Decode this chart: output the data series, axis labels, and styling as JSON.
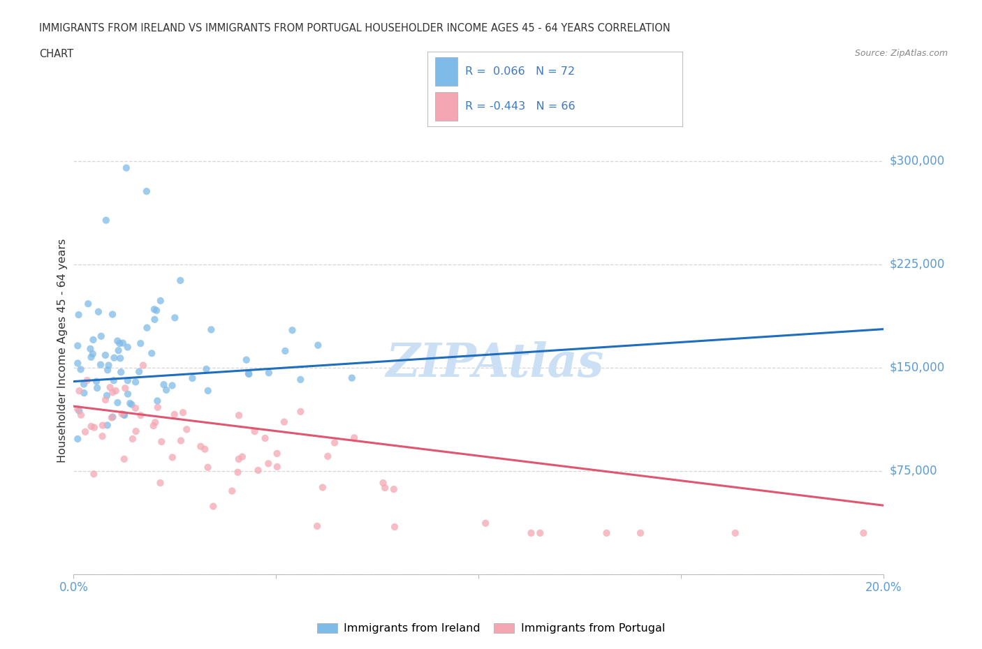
{
  "title_line1": "IMMIGRANTS FROM IRELAND VS IMMIGRANTS FROM PORTUGAL HOUSEHOLDER INCOME AGES 45 - 64 YEARS CORRELATION",
  "title_line2": "CHART",
  "source": "Source: ZipAtlas.com",
  "ylabel": "Householder Income Ages 45 - 64 years",
  "xlim": [
    0.0,
    0.2
  ],
  "ylim": [
    0,
    325000
  ],
  "yticks": [
    0,
    75000,
    150000,
    225000,
    300000
  ],
  "xticks": [
    0.0,
    0.05,
    0.1,
    0.15,
    0.2
  ],
  "ireland_color": "#7fbbe8",
  "portugal_color": "#f4a7b3",
  "ireland_line_color": "#1f6dbf",
  "portugal_line_color": "#e05570",
  "ireland_R": 0.066,
  "ireland_N": 72,
  "portugal_R": -0.443,
  "portugal_N": 66,
  "background_color": "#ffffff",
  "grid_color": "#cccccc",
  "ireland_trend": [
    140000,
    178000
  ],
  "portugal_trend": [
    122000,
    50000
  ],
  "title_color": "#333333",
  "axis_label_color": "#333333",
  "tick_color": "#5b9bd5",
  "source_color": "#888888",
  "legend_text_color": "#333333",
  "legend_value_color": "#3c78c8",
  "watermark_color": "#cce0f5",
  "watermark_text": "ZIPAtlas"
}
